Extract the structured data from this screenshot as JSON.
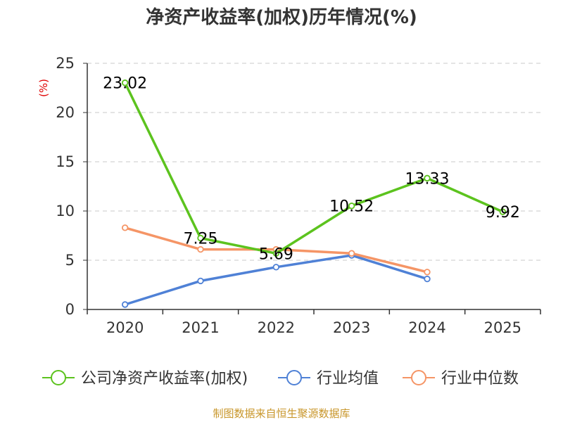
{
  "chart_data": {
    "type": "line",
    "title": "净资产收益率(加权)历年情况(%)",
    "ylabel": "(%)",
    "xlabel": "",
    "categories": [
      "2020",
      "2021",
      "2022",
      "2023",
      "2024",
      "2025"
    ],
    "ylim": [
      0,
      25
    ],
    "yticks": [
      0,
      5,
      10,
      15,
      20,
      25
    ],
    "grid": true,
    "legend_position": "bottom",
    "series": [
      {
        "name": "公司净资产收益率(加权)",
        "color": "#5cc31e",
        "values": [
          23.02,
          7.25,
          5.69,
          10.52,
          13.33,
          9.92
        ],
        "labels": [
          "23.02",
          "7.25",
          "5.69",
          "10.52",
          "13.33",
          "9.92"
        ]
      },
      {
        "name": "行业均值",
        "color": "#4f81d6",
        "values": [
          0.5,
          2.9,
          4.3,
          5.5,
          3.1,
          null
        ]
      },
      {
        "name": "行业中位数",
        "color": "#f59566",
        "values": [
          8.3,
          6.1,
          6.1,
          5.7,
          3.8,
          null
        ]
      }
    ]
  },
  "footer": {
    "source": "制图数据来自恒生聚源数据库"
  }
}
